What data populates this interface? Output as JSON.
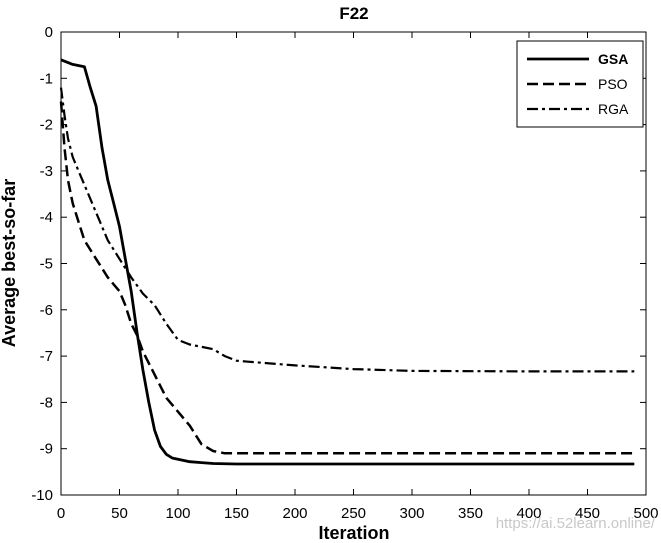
{
  "chart_data": {
    "type": "line",
    "title": "F22",
    "xlabel": "Iteration",
    "ylabel": "Average best-so-far",
    "xlim": [
      0,
      500
    ],
    "ylim": [
      -10,
      0
    ],
    "x_ticks": [
      "0",
      "50",
      "100",
      "150",
      "200",
      "250",
      "300",
      "350",
      "400",
      "450",
      "500"
    ],
    "y_ticks": [
      "0",
      "-1",
      "-2",
      "-3",
      "-4",
      "-5",
      "-6",
      "-7",
      "-8",
      "-9",
      "-10"
    ],
    "grid": false,
    "legend_position": "top-right",
    "series": [
      {
        "name": "GSA",
        "style": "solid",
        "bold": true,
        "x": [
          0,
          10,
          20,
          25,
          30,
          35,
          40,
          45,
          50,
          55,
          60,
          65,
          70,
          75,
          80,
          85,
          90,
          95,
          100,
          110,
          120,
          130,
          150,
          200,
          300,
          400,
          490
        ],
        "y": [
          -0.6,
          -0.7,
          -0.75,
          -1.2,
          -1.6,
          -2.5,
          -3.2,
          -3.7,
          -4.2,
          -4.9,
          -5.6,
          -6.5,
          -7.3,
          -8.0,
          -8.6,
          -8.95,
          -9.12,
          -9.2,
          -9.23,
          -9.28,
          -9.3,
          -9.32,
          -9.33,
          -9.33,
          -9.33,
          -9.33,
          -9.33
        ]
      },
      {
        "name": "PSO",
        "style": "dashed",
        "bold": false,
        "x": [
          0,
          3,
          6,
          10,
          15,
          20,
          30,
          40,
          50,
          55,
          60,
          65,
          70,
          80,
          90,
          100,
          110,
          120,
          130,
          140,
          150,
          200,
          300,
          400,
          490
        ],
        "y": [
          -1.5,
          -2.5,
          -3.2,
          -3.7,
          -4.1,
          -4.5,
          -4.9,
          -5.3,
          -5.6,
          -5.9,
          -6.3,
          -6.55,
          -6.9,
          -7.4,
          -7.9,
          -8.2,
          -8.5,
          -8.9,
          -9.05,
          -9.1,
          -9.1,
          -9.1,
          -9.1,
          -9.1,
          -9.1
        ]
      },
      {
        "name": "RGA",
        "style": "dashdot",
        "bold": false,
        "x": [
          0,
          3,
          6,
          10,
          15,
          20,
          30,
          40,
          50,
          60,
          70,
          80,
          90,
          100,
          110,
          120,
          130,
          140,
          150,
          160,
          200,
          250,
          300,
          400,
          490
        ],
        "y": [
          -1.2,
          -1.8,
          -2.3,
          -2.7,
          -3.0,
          -3.3,
          -3.9,
          -4.5,
          -4.9,
          -5.3,
          -5.65,
          -5.9,
          -6.3,
          -6.65,
          -6.75,
          -6.8,
          -6.85,
          -7.0,
          -7.1,
          -7.12,
          -7.2,
          -7.28,
          -7.32,
          -7.33,
          -7.33
        ]
      }
    ]
  },
  "watermark": "https://ai.52learn.online/"
}
